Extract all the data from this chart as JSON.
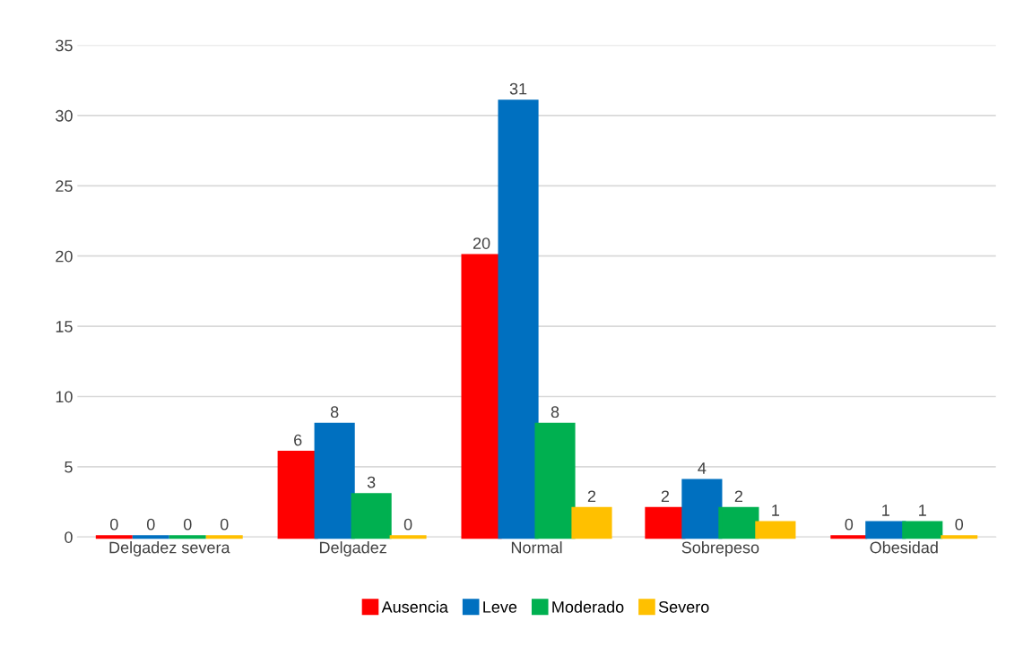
{
  "chart_data": {
    "type": "bar",
    "categories": [
      "Delgadez severa",
      "Delgadez",
      "Normal",
      "Sobrepeso",
      "Obesidad"
    ],
    "series": [
      {
        "name": "Ausencia",
        "color": "#ff0000",
        "values": [
          0,
          6,
          20,
          2,
          0
        ]
      },
      {
        "name": "Leve",
        "color": "#0070c0",
        "values": [
          0,
          8,
          31,
          4,
          1
        ]
      },
      {
        "name": "Moderado",
        "color": "#00b050",
        "values": [
          0,
          3,
          8,
          2,
          1
        ]
      },
      {
        "name": "Severo",
        "color": "#ffc000",
        "values": [
          0,
          0,
          2,
          1,
          0
        ]
      }
    ],
    "ylim": [
      0,
      35
    ],
    "yticks": [
      0,
      5,
      10,
      15,
      20,
      25,
      30,
      35
    ],
    "grid": "y",
    "legend": "bottom",
    "data_labels": true
  }
}
